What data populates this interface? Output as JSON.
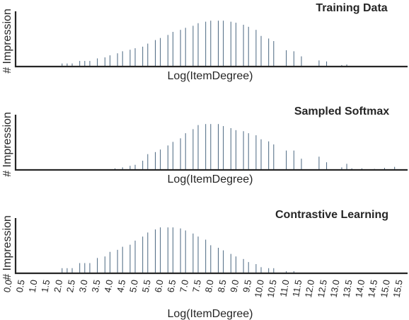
{
  "chart_data": [
    {
      "type": "bar",
      "title": "Training Data",
      "xlabel": "Log(ItemDegree)",
      "ylabel": "# Impression",
      "xlim": [
        0,
        16
      ],
      "ylim": [
        0,
        1
      ],
      "bar_color": "#4a6680",
      "x": [
        2.1,
        2.3,
        2.5,
        2.8,
        3.0,
        3.2,
        3.5,
        3.8,
        4.0,
        4.3,
        4.5,
        4.8,
        5.0,
        5.3,
        5.5,
        5.8,
        6.0,
        6.3,
        6.5,
        6.8,
        7.0,
        7.3,
        7.5,
        7.8,
        8.0,
        8.3,
        8.5,
        8.8,
        9.0,
        9.3,
        9.5,
        9.8,
        10.0,
        10.3,
        10.5,
        11.0,
        11.3,
        11.6,
        12.3,
        12.6,
        13.2,
        13.4
      ],
      "values": [
        0.06,
        0.06,
        0.06,
        0.11,
        0.11,
        0.11,
        0.16,
        0.18,
        0.22,
        0.26,
        0.3,
        0.33,
        0.36,
        0.39,
        0.45,
        0.52,
        0.56,
        0.62,
        0.68,
        0.72,
        0.76,
        0.8,
        0.85,
        0.88,
        0.9,
        0.9,
        0.9,
        0.88,
        0.86,
        0.82,
        0.78,
        0.72,
        0.6,
        0.55,
        0.5,
        0.32,
        0.3,
        0.2,
        0.12,
        0.1,
        0.03,
        0.04
      ]
    },
    {
      "type": "bar",
      "title": "Sampled Softmax",
      "xlabel": "Log(ItemDegree)",
      "ylabel": "# Impression",
      "xlim": [
        0,
        16
      ],
      "ylim": [
        0,
        1
      ],
      "bar_color": "#4a6680",
      "x": [
        4.2,
        4.5,
        4.8,
        5.0,
        5.3,
        5.5,
        5.8,
        6.0,
        6.3,
        6.5,
        6.8,
        7.0,
        7.3,
        7.5,
        7.8,
        8.0,
        8.3,
        8.5,
        8.8,
        9.0,
        9.3,
        9.5,
        9.8,
        10.0,
        10.3,
        10.5,
        11.0,
        11.3,
        11.6,
        12.3,
        12.6,
        13.2,
        13.4,
        13.6,
        14.0,
        14.5,
        14.9,
        15.3
      ],
      "values": [
        0.03,
        0.05,
        0.08,
        0.1,
        0.18,
        0.31,
        0.35,
        0.4,
        0.48,
        0.55,
        0.62,
        0.72,
        0.8,
        0.88,
        0.9,
        0.9,
        0.9,
        0.86,
        0.82,
        0.78,
        0.76,
        0.72,
        0.68,
        0.6,
        0.56,
        0.5,
        0.38,
        0.38,
        0.22,
        0.26,
        0.15,
        0.05,
        0.12,
        0.03,
        0.03,
        0.02,
        0.04,
        0.06
      ]
    },
    {
      "type": "bar",
      "title": "Contrastive Learning",
      "xlabel": "Log(ItemDegree)",
      "ylabel": "# Impression",
      "xlim": [
        0,
        16
      ],
      "ylim": [
        0,
        1
      ],
      "bar_color": "#4a6680",
      "x": [
        2.1,
        2.3,
        2.5,
        2.8,
        3.0,
        3.2,
        3.5,
        3.8,
        4.0,
        4.3,
        4.5,
        4.8,
        5.0,
        5.3,
        5.5,
        5.8,
        6.0,
        6.3,
        6.5,
        6.8,
        7.0,
        7.3,
        7.5,
        7.8,
        8.0,
        8.3,
        8.5,
        8.8,
        9.0,
        9.3,
        9.5,
        9.8,
        10.0,
        10.3,
        10.5,
        11.0,
        11.3
      ],
      "values": [
        0.1,
        0.1,
        0.1,
        0.2,
        0.2,
        0.2,
        0.3,
        0.33,
        0.42,
        0.46,
        0.52,
        0.56,
        0.64,
        0.72,
        0.8,
        0.86,
        0.9,
        0.9,
        0.9,
        0.88,
        0.84,
        0.78,
        0.72,
        0.66,
        0.55,
        0.5,
        0.45,
        0.38,
        0.33,
        0.28,
        0.22,
        0.18,
        0.12,
        0.1,
        0.1,
        0.04,
        0.04
      ]
    }
  ],
  "x_ticks": [
    "0.0",
    "0.5",
    "1.0",
    "1.5",
    "2.0",
    "2.5",
    "3.0",
    "3.5",
    "4.0",
    "4.5",
    "5.0",
    "5.5",
    "6.0",
    "6.5",
    "7.0",
    "7.5",
    "8.0",
    "8.5",
    "9.0",
    "9.5",
    "10.0",
    "10.5",
    "11.0",
    "11.5",
    "12.0",
    "12.5",
    "13.0",
    "13.5",
    "14.0",
    "14.5",
    "15.0",
    "15.5"
  ]
}
